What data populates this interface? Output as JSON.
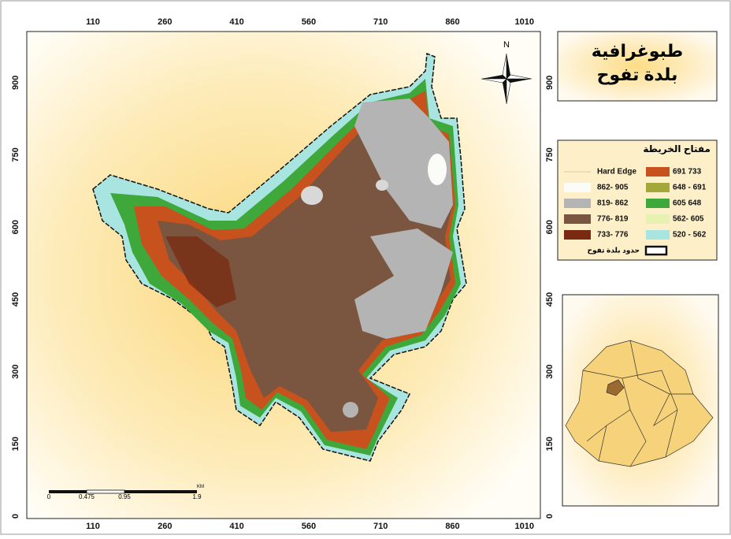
{
  "title": {
    "line1": "طبوغرافية",
    "line2": "بلدة تفوح"
  },
  "north": "N",
  "grid": {
    "x_ticks": [
      110,
      260,
      410,
      560,
      710,
      860,
      1010
    ],
    "y_ticks": [
      900,
      750,
      600,
      450,
      300,
      150,
      0
    ]
  },
  "legend": {
    "title": "مفتاح الخريطة",
    "left": [
      {
        "label": "Hard Edge"
      },
      {
        "label": "862- 905"
      },
      {
        "label": "819- 862"
      },
      {
        "label": "776- 819"
      },
      {
        "label": "733- 776"
      }
    ],
    "right": [
      {
        "label": "691 733"
      },
      {
        "label": "648 - 691"
      },
      {
        "label": "605 648"
      },
      {
        "label": "562- 605"
      },
      {
        "label": "520 - 562"
      }
    ],
    "boundary": "حدود بلدة تفوح"
  },
  "scale_bar": {
    "labels": [
      "0",
      "0.475",
      "0.95",
      "1.9"
    ],
    "unit": "KM"
  }
}
